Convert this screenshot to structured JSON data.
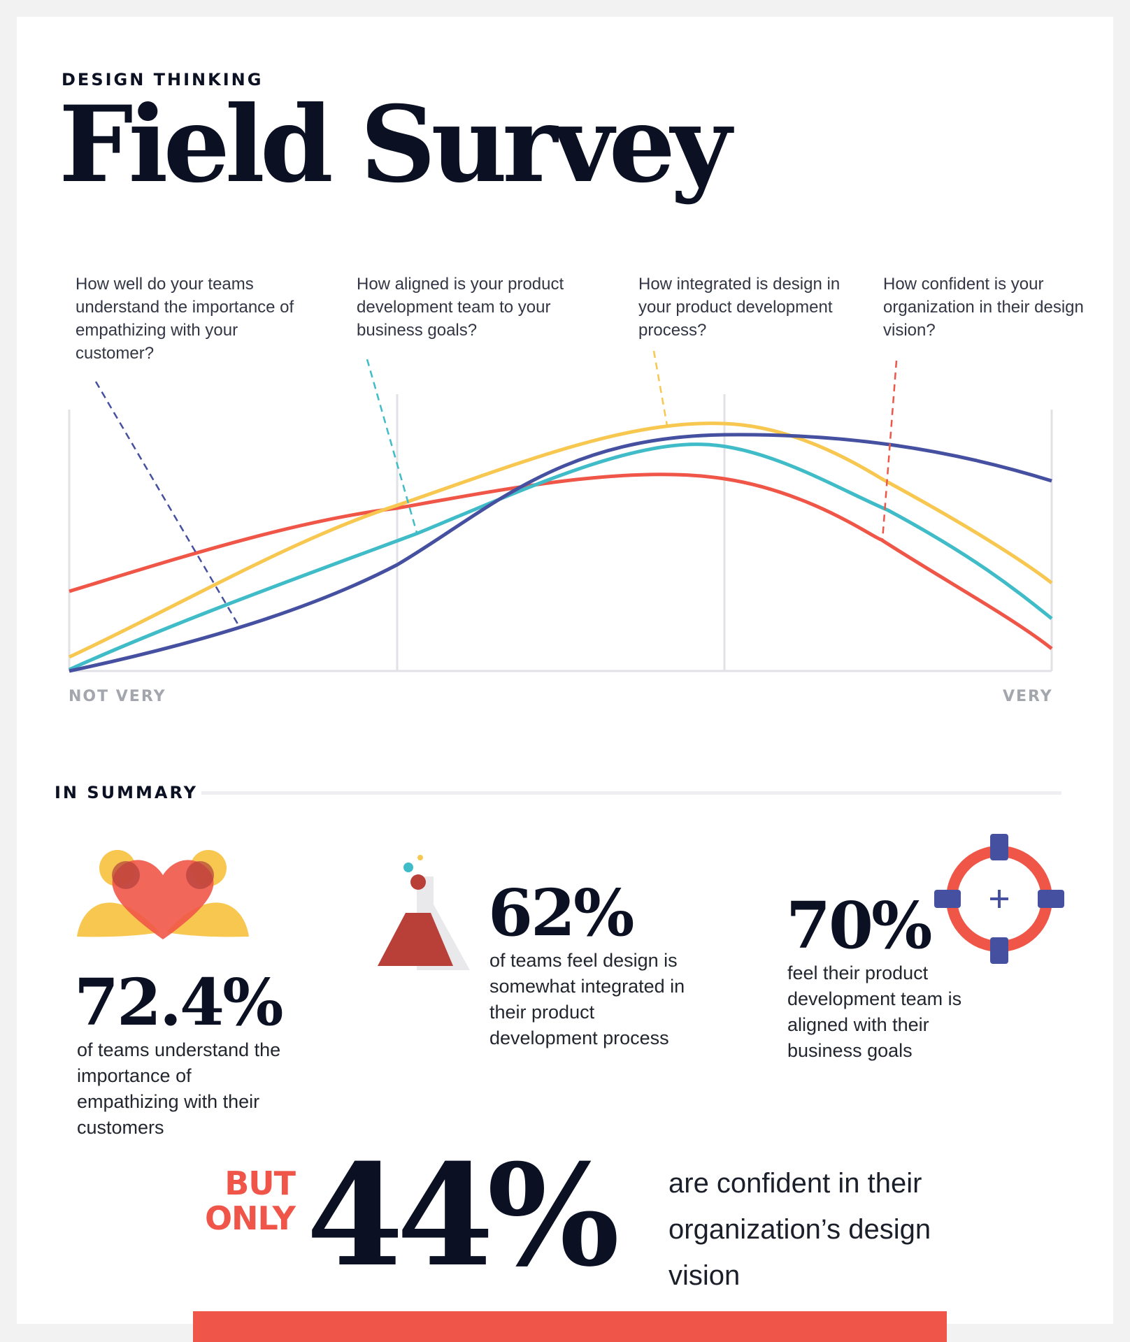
{
  "header": {
    "eyebrow": "DESIGN THINKING",
    "title": "Field Survey"
  },
  "chart_data": {
    "type": "line",
    "x_axis": {
      "left_label": "NOT VERY",
      "right_label": "VERY"
    },
    "grid": "vertical gridlines",
    "series": [
      {
        "question": "How well do your teams understand the importance of empathizing with your customer?",
        "color": "#4550a0"
      },
      {
        "question": "How aligned is your product development team to your business goals?",
        "color": "#3fbcc8"
      },
      {
        "question": "How integrated is design in your product development process?",
        "color": "#f7c750"
      },
      {
        "question": "How confident is your organization in their design vision?",
        "color": "#ef5648"
      }
    ]
  },
  "summary": {
    "heading": "IN SUMMARY",
    "stats": [
      {
        "value": "72.4%",
        "text": "of teams understand the importance of empathizing with their customers",
        "icon": "heart-hands-icon"
      },
      {
        "value": "62%",
        "text": "of teams feel design is somewhat integrated in their product development process",
        "icon": "flask-icon"
      },
      {
        "value": "70%",
        "text": "feel their product development team is aligned with their business goals",
        "icon": "target-icon"
      }
    ],
    "highlight": {
      "prefix": "BUT ONLY",
      "value": "44%",
      "text": "are confident in their organization’s design vision"
    }
  },
  "colors": {
    "navy": "#0b1022",
    "red": "#ef5648",
    "yellow": "#f7c750",
    "teal": "#3fbcc8",
    "indigo": "#4550a0"
  }
}
